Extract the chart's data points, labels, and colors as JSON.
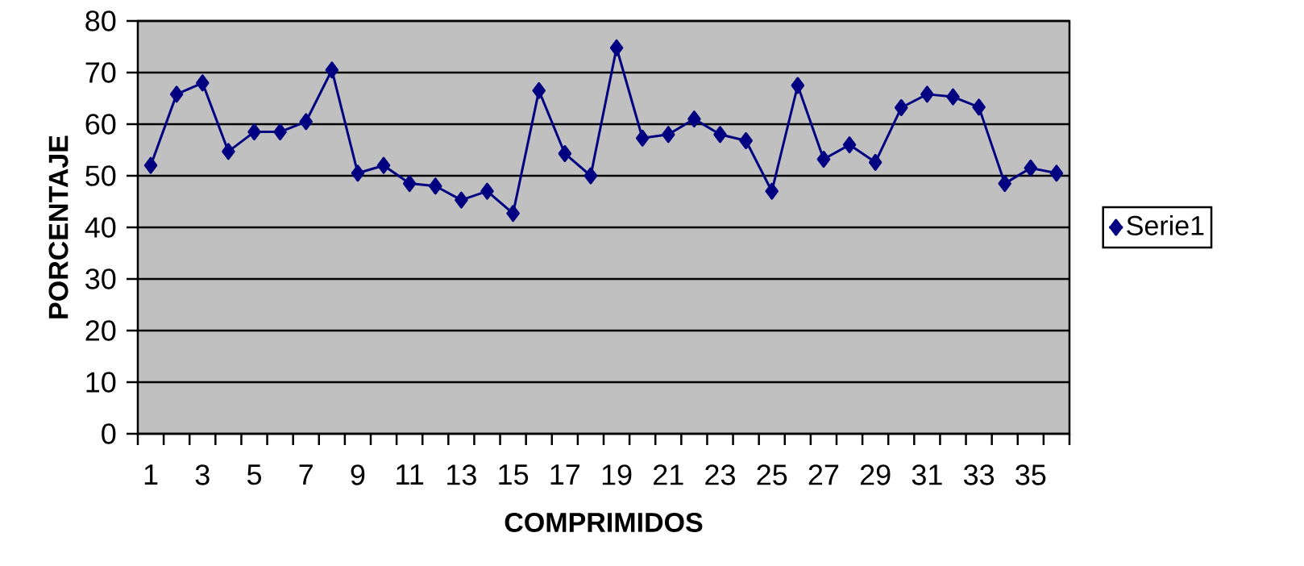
{
  "chart_data": {
    "type": "line",
    "xlabel": "COMPRIMIDOS",
    "ylabel": "PORCENTAJE",
    "categories": [
      "1",
      null,
      "3",
      null,
      "5",
      null,
      "7",
      null,
      "9",
      null,
      "11",
      null,
      "13",
      null,
      "15",
      null,
      "17",
      null,
      "19",
      null,
      "21",
      null,
      "23",
      null,
      "25",
      null,
      "27",
      null,
      "29",
      null,
      "31",
      null,
      "33",
      null,
      "35",
      null
    ],
    "series": [
      {
        "name": "Serie1",
        "color": "#000080",
        "values": [
          52,
          65.8,
          68,
          54.7,
          58.5,
          58.5,
          60.5,
          70.5,
          50.5,
          52,
          48.5,
          48,
          45.3,
          47,
          42.7,
          66.5,
          54.3,
          50,
          74.8,
          57.3,
          58,
          61,
          58,
          56.8,
          47,
          67.5,
          53.2,
          56,
          52.6,
          63.2,
          65.8,
          65.3,
          63.3,
          48.5,
          51.5,
          50.5
        ]
      }
    ],
    "ylim": [
      0,
      80
    ],
    "yticks": [
      0,
      10,
      20,
      30,
      40,
      50,
      60,
      70,
      80
    ],
    "grid": "y",
    "legend": "right",
    "marker": "diamond",
    "line_style": "solid"
  }
}
